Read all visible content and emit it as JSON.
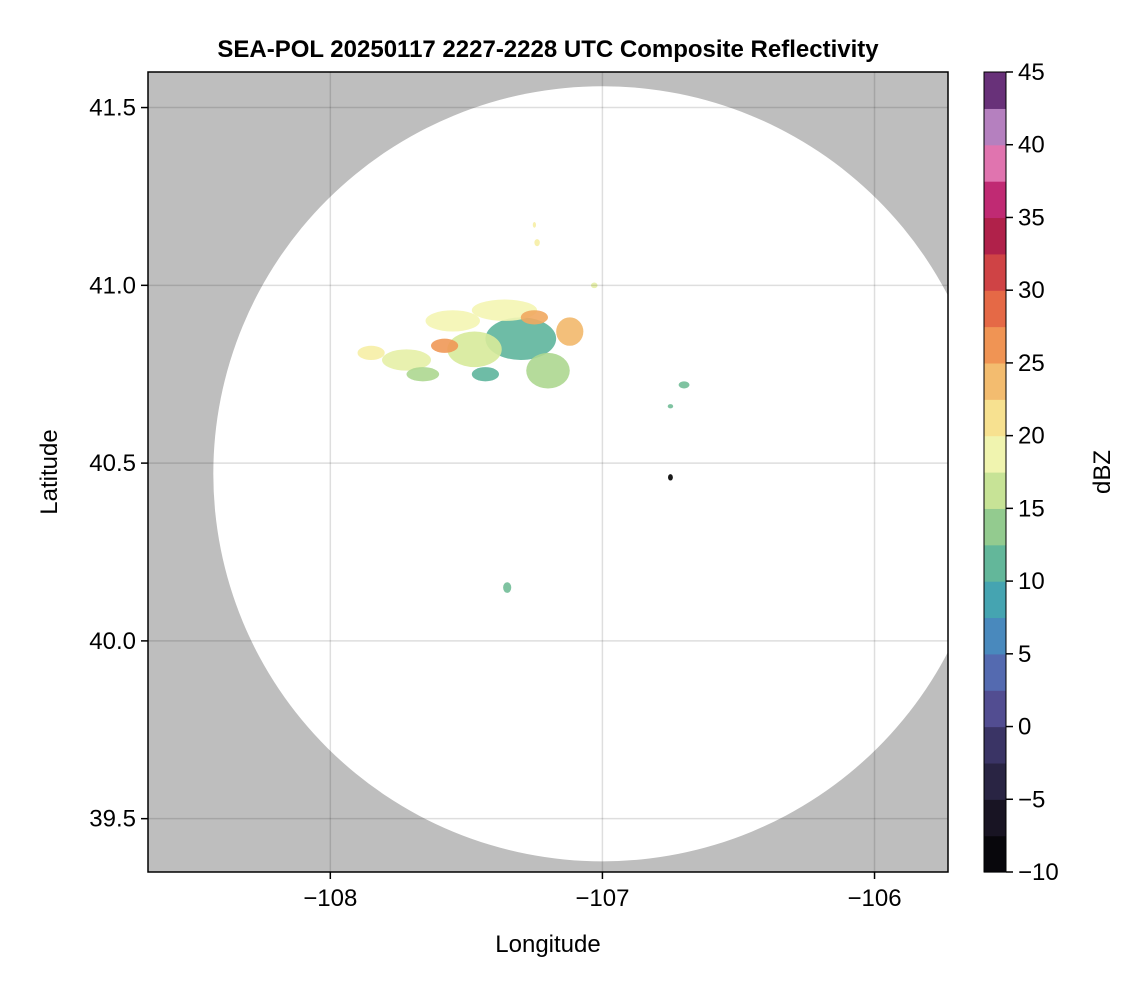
{
  "chart_data": {
    "type": "heatmap",
    "title": "SEA-POL 20250117 2227-2228 UTC Composite Reflectivity",
    "xlabel": "Longitude",
    "ylabel": "Latitude",
    "xlim": [
      -108.67,
      -105.73
    ],
    "ylim": [
      39.35,
      41.6
    ],
    "xticks": [
      -108,
      -107,
      -106
    ],
    "xtick_labels": [
      "−108",
      "−107",
      "−106"
    ],
    "yticks": [
      39.5,
      40.0,
      40.5,
      41.0,
      41.5
    ],
    "ytick_labels": [
      "39.5",
      "40.0",
      "40.5",
      "41.0",
      "41.5"
    ],
    "grid": true,
    "no_data_color": "#bebebe",
    "radar_coverage": {
      "center_lon": -107.0,
      "center_lat": 40.47,
      "lon_radius": 1.43,
      "lat_radius": 1.09
    },
    "colorbar": {
      "label": "dBZ",
      "range": [
        -10,
        45
      ],
      "ticks": [
        -10,
        -5,
        0,
        5,
        10,
        15,
        20,
        25,
        30,
        35,
        40,
        45
      ],
      "tick_labels": [
        "−10",
        "−5",
        "0",
        "5",
        "10",
        "15",
        "20",
        "25",
        "30",
        "35",
        "40",
        "45"
      ],
      "step": 2.5,
      "colormap": "spectral-extended"
    },
    "echoes": [
      {
        "lon": -107.3,
        "lat": 40.85,
        "lon_radius": 0.13,
        "lat_radius": 0.06,
        "dbz": 11
      },
      {
        "lon": -107.47,
        "lat": 40.82,
        "lon_radius": 0.1,
        "lat_radius": 0.05,
        "dbz": 17
      },
      {
        "lon": -107.2,
        "lat": 40.76,
        "lon_radius": 0.08,
        "lat_radius": 0.05,
        "dbz": 15
      },
      {
        "lon": -107.12,
        "lat": 40.87,
        "lon_radius": 0.05,
        "lat_radius": 0.04,
        "dbz": 24
      },
      {
        "lon": -107.55,
        "lat": 40.9,
        "lon_radius": 0.1,
        "lat_radius": 0.03,
        "dbz": 19
      },
      {
        "lon": -107.36,
        "lat": 40.93,
        "lon_radius": 0.12,
        "lat_radius": 0.03,
        "dbz": 19
      },
      {
        "lon": -107.25,
        "lat": 40.91,
        "lon_radius": 0.05,
        "lat_radius": 0.02,
        "dbz": 25
      },
      {
        "lon": -107.58,
        "lat": 40.83,
        "lon_radius": 0.05,
        "lat_radius": 0.02,
        "dbz": 26
      },
      {
        "lon": -107.72,
        "lat": 40.79,
        "lon_radius": 0.09,
        "lat_radius": 0.03,
        "dbz": 18
      },
      {
        "lon": -107.85,
        "lat": 40.81,
        "lon_radius": 0.05,
        "lat_radius": 0.02,
        "dbz": 20
      },
      {
        "lon": -107.66,
        "lat": 40.75,
        "lon_radius": 0.06,
        "lat_radius": 0.02,
        "dbz": 15
      },
      {
        "lon": -107.43,
        "lat": 40.75,
        "lon_radius": 0.05,
        "lat_radius": 0.02,
        "dbz": 11
      },
      {
        "lon": -107.24,
        "lat": 41.12,
        "lon_radius": 0.01,
        "lat_radius": 0.01,
        "dbz": 20
      },
      {
        "lon": -107.25,
        "lat": 41.17,
        "lon_radius": 0.006,
        "lat_radius": 0.008,
        "dbz": 20
      },
      {
        "lon": -107.03,
        "lat": 41.0,
        "lon_radius": 0.012,
        "lat_radius": 0.008,
        "dbz": 18
      },
      {
        "lon": -106.7,
        "lat": 40.72,
        "lon_radius": 0.02,
        "lat_radius": 0.01,
        "dbz": 12
      },
      {
        "lon": -106.75,
        "lat": 40.66,
        "lon_radius": 0.01,
        "lat_radius": 0.006,
        "dbz": 12
      },
      {
        "lon": -107.35,
        "lat": 40.15,
        "lon_radius": 0.015,
        "lat_radius": 0.015,
        "dbz": 12
      },
      {
        "lon": -106.75,
        "lat": 40.46,
        "lon_radius": 0.009,
        "lat_radius": 0.009,
        "dbz": -10
      }
    ]
  }
}
